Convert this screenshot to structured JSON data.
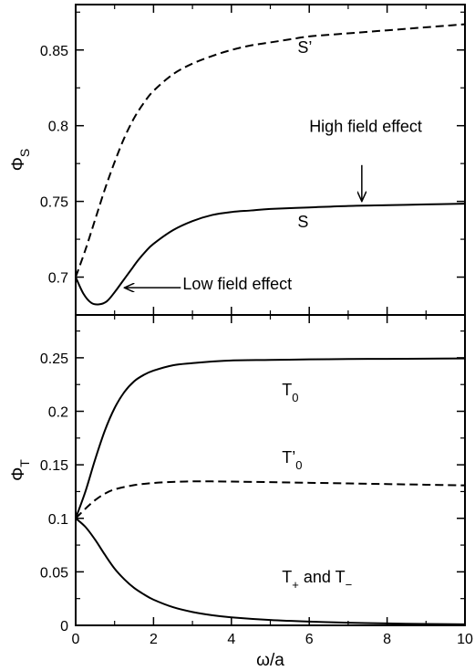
{
  "chart_data": [
    {
      "type": "line",
      "panel": "top",
      "ylabel": "Φ",
      "ylabel_sub": "S",
      "xlim": [
        0,
        10
      ],
      "ylim": [
        0.675,
        0.88
      ],
      "xticks": [
        0,
        2,
        4,
        6,
        8,
        10
      ],
      "yticks": [
        0.7,
        0.75,
        0.8,
        0.85
      ],
      "ytick_labels": [
        "0.7",
        "0.75",
        "0.8",
        "0.85"
      ],
      "show_x_tick_labels": false,
      "series": [
        {
          "name": "S’",
          "style": "dashed",
          "x": [
            0,
            0.25,
            0.5,
            0.75,
            1,
            1.25,
            1.5,
            1.75,
            2,
            2.5,
            3,
            3.5,
            4,
            4.5,
            5,
            5.5,
            6,
            6.5,
            7,
            7.5,
            8,
            8.5,
            9,
            9.5,
            10
          ],
          "y": [
            0.7,
            0.718,
            0.738,
            0.758,
            0.776,
            0.792,
            0.805,
            0.815,
            0.823,
            0.834,
            0.841,
            0.846,
            0.85,
            0.853,
            0.855,
            0.857,
            0.859,
            0.86,
            0.861,
            0.862,
            0.863,
            0.864,
            0.865,
            0.866,
            0.867
          ]
        },
        {
          "name": "S",
          "style": "solid",
          "x": [
            0,
            0.2,
            0.4,
            0.6,
            0.8,
            1.0,
            1.2,
            1.4,
            1.6,
            1.8,
            2.0,
            2.5,
            3,
            3.5,
            4,
            4.5,
            5,
            6,
            7,
            8,
            9,
            10
          ],
          "y": [
            0.7,
            0.689,
            0.683,
            0.682,
            0.684,
            0.69,
            0.697,
            0.704,
            0.711,
            0.717,
            0.722,
            0.731,
            0.737,
            0.741,
            0.743,
            0.744,
            0.745,
            0.746,
            0.747,
            0.7475,
            0.748,
            0.7485
          ]
        }
      ],
      "annotations": [
        {
          "text": "S’",
          "x": 5.7,
          "y": 0.848
        },
        {
          "text": "S",
          "x": 5.7,
          "y": 0.733
        },
        {
          "text": "High field effect",
          "x": 6.0,
          "y": 0.796
        },
        {
          "text": "Low field effect",
          "x": 2.75,
          "y": 0.692
        }
      ],
      "arrows": [
        {
          "from": [
            7.35,
            0.774
          ],
          "to": [
            7.35,
            0.75
          ]
        },
        {
          "from": [
            2.7,
            0.693
          ],
          "to": [
            1.25,
            0.693
          ]
        }
      ]
    },
    {
      "type": "line",
      "panel": "bottom",
      "ylabel": "Φ",
      "ylabel_sub": "T",
      "xlabel": "ω/a",
      "xlim": [
        0,
        10
      ],
      "ylim": [
        0,
        0.29
      ],
      "xticks": [
        0,
        2,
        4,
        6,
        8,
        10
      ],
      "xtick_labels": [
        "0",
        "2",
        "4",
        "6",
        "8",
        "10"
      ],
      "yticks": [
        0,
        0.05,
        0.1,
        0.15,
        0.2,
        0.25
      ],
      "ytick_labels": [
        "0",
        "0.05",
        "0.1",
        "0.15",
        "0.2",
        "0.25"
      ],
      "series": [
        {
          "name": "T₀",
          "style": "solid",
          "x": [
            0,
            0.25,
            0.5,
            0.75,
            1,
            1.25,
            1.5,
            1.75,
            2,
            2.5,
            3,
            3.5,
            4,
            5,
            6,
            7,
            8,
            9,
            10
          ],
          "y": [
            0.1,
            0.125,
            0.155,
            0.182,
            0.203,
            0.218,
            0.228,
            0.234,
            0.238,
            0.243,
            0.245,
            0.2465,
            0.2475,
            0.248,
            0.2485,
            0.2488,
            0.249,
            0.2492,
            0.2494
          ]
        },
        {
          "name": "T’₀",
          "style": "dashed",
          "x": [
            0,
            0.25,
            0.5,
            0.75,
            1,
            1.5,
            2,
            2.5,
            3,
            3.5,
            4,
            5,
            6,
            7,
            8,
            9,
            10
          ],
          "y": [
            0.1,
            0.109,
            0.117,
            0.123,
            0.127,
            0.131,
            0.133,
            0.134,
            0.1345,
            0.1345,
            0.1343,
            0.1338,
            0.1332,
            0.1326,
            0.132,
            0.1314,
            0.1308
          ]
        },
        {
          "name": "T₊ and T₋",
          "style": "solid",
          "x": [
            0,
            0.25,
            0.5,
            0.75,
            1,
            1.25,
            1.5,
            1.75,
            2,
            2.5,
            3,
            3.5,
            4,
            5,
            6,
            7,
            8,
            9,
            10
          ],
          "y": [
            0.1,
            0.092,
            0.08,
            0.066,
            0.053,
            0.043,
            0.035,
            0.029,
            0.024,
            0.017,
            0.0125,
            0.0095,
            0.0075,
            0.005,
            0.0035,
            0.0025,
            0.0018,
            0.0013,
            0.001
          ]
        }
      ],
      "annotations": [
        {
          "text": "T",
          "sub": "0",
          "x": 5.3,
          "y": 0.215
        },
        {
          "text": "T’",
          "sub": "0",
          "x": 5.3,
          "y": 0.152
        },
        {
          "text": "T",
          "sub": "+",
          "mid": " and T",
          "sub2": "−",
          "x": 5.3,
          "y": 0.04
        }
      ]
    }
  ]
}
